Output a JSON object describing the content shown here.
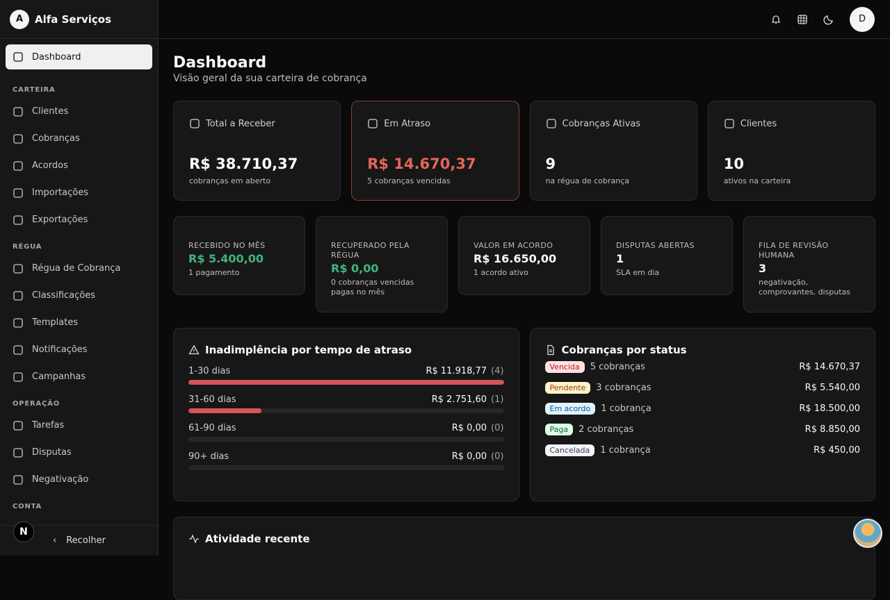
{
  "brand": {
    "initial": "A",
    "name": "Alfa Serviços"
  },
  "sidebar": {
    "active": "Dashboard",
    "sections": [
      {
        "title": "CARTEIRA",
        "items": [
          "Clientes",
          "Cobranças",
          "Acordos",
          "Importações",
          "Exportações"
        ]
      },
      {
        "title": "RÉGUA",
        "items": [
          "Régua de Cobrança",
          "Classificações",
          "Templates",
          "Notificações",
          "Campanhas"
        ]
      },
      {
        "title": "OPERAÇÃO",
        "items": [
          "Tarefas",
          "Disputas",
          "Negativação"
        ]
      },
      {
        "title": "CONTA",
        "items": []
      }
    ],
    "collapse": "Recolher"
  },
  "badge": "N",
  "user": {
    "initial": "D"
  },
  "page": {
    "title": "Dashboard",
    "subtitle": "Visão geral da sua carteira de cobrança"
  },
  "kpis": [
    {
      "label": "Total a Receber",
      "value": "R$ 38.710,37",
      "note": "cobranças em aberto"
    },
    {
      "label": "Em Atraso",
      "value": "R$ 14.670,37",
      "note": "5 cobranças vencidas"
    },
    {
      "label": "Cobranças Ativas",
      "value": "9",
      "note": "na régua de cobrança"
    },
    {
      "label": "Clientes",
      "value": "10",
      "note": "ativos na carteira"
    }
  ],
  "metrics": [
    {
      "label": "RECEBIDO NO MÊS",
      "value": "R$ 5.400,00",
      "note": "1 pagamento"
    },
    {
      "label": "RECUPERADO PELA RÉGUA",
      "value": "R$ 0,00",
      "note": "0 cobranças vencidas pagas no mês"
    },
    {
      "label": "VALOR EM ACORDO",
      "value": "R$ 16.650,00",
      "note": "1 acordo ativo"
    },
    {
      "label": "DISPUTAS ABERTAS",
      "value": "1",
      "note": "SLA em dia"
    },
    {
      "label": "FILA DE REVISÃO HUMANA",
      "value": "3",
      "note": "negativação, comprovantes, disputas"
    }
  ],
  "aging": {
    "title": "Inadimplência por tempo de atraso",
    "rows": [
      {
        "range": "1-30 dias",
        "amount": {
          "value": 11918.77,
          "label": "R$ 11.918,77"
        },
        "count": "(4)"
      },
      {
        "range": "31-60 dias",
        "amount": {
          "value": 2751.6,
          "label": "R$ 2.751,60"
        },
        "count": "(1)"
      },
      {
        "range": "61-90 dias",
        "amount": {
          "value": 0,
          "label": "R$ 0,00"
        },
        "count": "(0)"
      },
      {
        "range": "90+ dias",
        "amount": {
          "value": 0,
          "label": "R$ 0,00"
        },
        "count": "(0)"
      }
    ]
  },
  "status": {
    "title": "Cobranças por status",
    "rows": [
      {
        "status": "Vencida",
        "count": "5 cobranças",
        "amount": "R$ 14.670,37"
      },
      {
        "status": "Pendente",
        "count": "3 cobranças",
        "amount": "R$ 5.540,00"
      },
      {
        "status": "Em acordo",
        "count": "1 cobrança",
        "amount": "R$ 18.500,00"
      },
      {
        "status": "Paga",
        "count": "2 cobranças",
        "amount": "R$ 8.850,00"
      },
      {
        "status": "Cancelada",
        "count": "1 cobrança",
        "amount": "R$ 450,00"
      }
    ]
  },
  "activity": {
    "title": "Atividade recente"
  }
}
